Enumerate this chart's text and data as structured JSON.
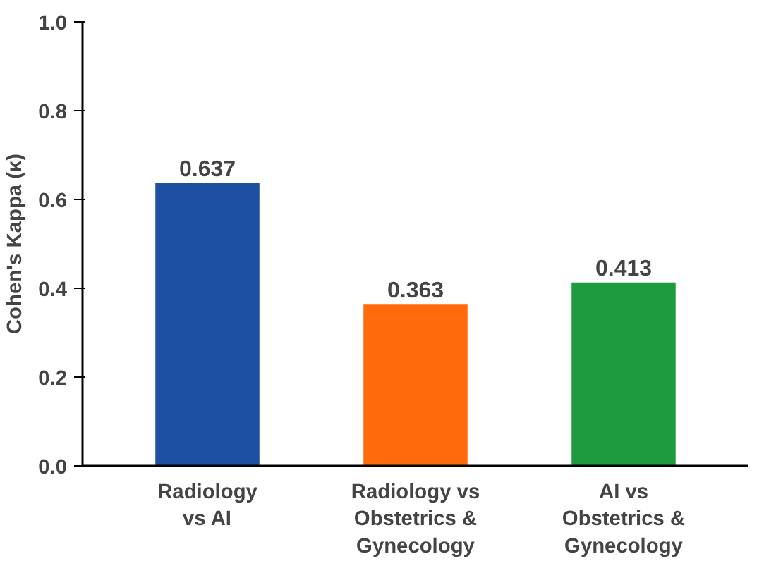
{
  "chart_data": {
    "type": "bar",
    "ylabel": "Cohen's Kappa (κ)",
    "categories": [
      "Radiology\nvs AI",
      "Radiology vs\nObstetrics &\nGynecology",
      "AI vs\nObstetrics &\nGynecology"
    ],
    "values": [
      0.637,
      0.363,
      0.413
    ],
    "colors": [
      "#1f4fa0",
      "#ff6a0a",
      "#1e9b3e"
    ],
    "ylim": [
      0,
      1
    ],
    "yticks": [
      {
        "value": 0,
        "label": "0.0"
      },
      0.2,
      0.4,
      0.6,
      0.8,
      {
        "value": 1,
        "label": "1.0"
      }
    ],
    "data_labels": true,
    "grid": false
  }
}
